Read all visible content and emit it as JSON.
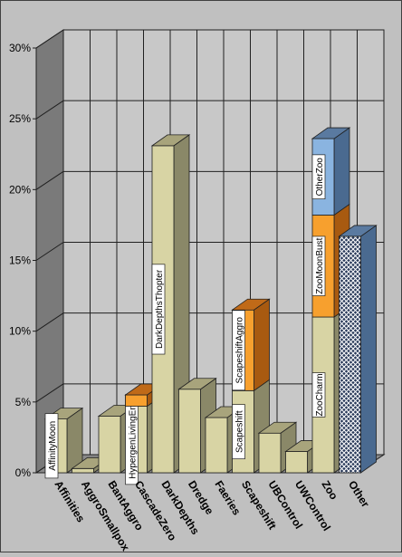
{
  "colors": {
    "background": "#c0c0c0",
    "wall": "#c8c8c8",
    "left_wall": "#7a7a7a",
    "floor": "#8a8a8a",
    "grid": "#202020",
    "bar_front": "#d8d4a4",
    "bar_side": "#8a8868",
    "bar_top": "#a8a47c",
    "orange_front": "#f7a02e",
    "orange_side": "#a85a10",
    "orange_top": "#c06a18",
    "blue_front": "#8ab4e0",
    "blue_side": "#4a6a90",
    "blue_top": "#5a7aa0",
    "other_front": "#2a3a5a",
    "other_side": "#4a6a90",
    "other_top": "#5a7aa0"
  },
  "chart_data": {
    "type": "bar",
    "stacked": true,
    "three_d": true,
    "grid": true,
    "title": "",
    "xlabel": "",
    "ylabel": "",
    "ylim": [
      0,
      30
    ],
    "y_ticks": [
      "0%",
      "5%",
      "10%",
      "15%",
      "20%",
      "25%",
      "30%"
    ],
    "categories": [
      "Affinities",
      "AggroSmallpox",
      "BantAggro",
      "CascadeZero",
      "DarkDepths",
      "Dredge",
      "Faeries",
      "Scapeshift",
      "UBControl",
      "UWControl",
      "Zoo",
      "Other"
    ],
    "bars": [
      {
        "category": "Affinities",
        "segments": [
          {
            "name": "AffinityMoon",
            "value": 3.8,
            "color": "bar"
          }
        ]
      },
      {
        "category": "AggroSmallpox",
        "segments": [
          {
            "name": "",
            "value": 0.3,
            "color": "bar"
          }
        ]
      },
      {
        "category": "BantAggro",
        "segments": [
          {
            "name": "",
            "value": 4.0,
            "color": "bar"
          }
        ]
      },
      {
        "category": "CascadeZero",
        "segments": [
          {
            "name": "HypergenLivingEnd",
            "value": 4.7,
            "color": "bar"
          },
          {
            "name": "",
            "value": 0.8,
            "color": "orange"
          }
        ]
      },
      {
        "category": "DarkDepths",
        "segments": [
          {
            "name": "DarkDepthsThopter",
            "value": 23.1,
            "color": "bar"
          }
        ]
      },
      {
        "category": "Dredge",
        "segments": [
          {
            "name": "",
            "value": 5.9,
            "color": "bar"
          }
        ]
      },
      {
        "category": "Faeries",
        "segments": [
          {
            "name": "",
            "value": 3.9,
            "color": "bar"
          }
        ]
      },
      {
        "category": "Scapeshift",
        "segments": [
          {
            "name": "Scapeshift",
            "value": 5.8,
            "color": "bar"
          },
          {
            "name": "ScapeshiftAggro",
            "value": 5.7,
            "color": "orange"
          }
        ]
      },
      {
        "category": "UBControl",
        "segments": [
          {
            "name": "",
            "value": 2.8,
            "color": "bar"
          }
        ]
      },
      {
        "category": "UWControl",
        "segments": [
          {
            "name": "",
            "value": 1.5,
            "color": "bar"
          }
        ]
      },
      {
        "category": "Zoo",
        "segments": [
          {
            "name": "ZooCharm",
            "value": 11.0,
            "color": "bar"
          },
          {
            "name": "ZooMoonBust",
            "value": 7.2,
            "color": "orange"
          },
          {
            "name": "OtherZoo",
            "value": 5.4,
            "color": "blue"
          }
        ]
      },
      {
        "category": "Other",
        "segments": [
          {
            "name": "",
            "value": 16.7,
            "color": "other"
          }
        ]
      }
    ]
  }
}
